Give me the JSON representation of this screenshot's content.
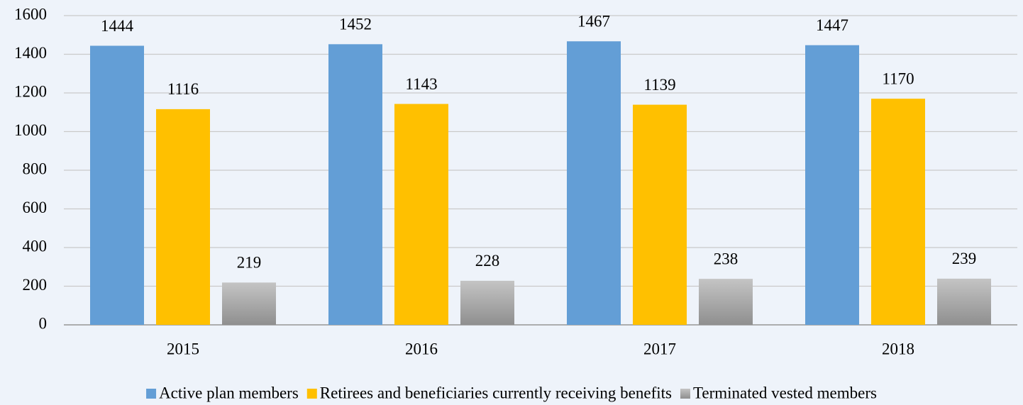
{
  "chart_data": {
    "type": "bar",
    "categories": [
      "2015",
      "2016",
      "2017",
      "2018"
    ],
    "series": [
      {
        "name": "Active plan members",
        "color": "#639ed6",
        "values": [
          1444,
          1452,
          1467,
          1447
        ]
      },
      {
        "name": "Retirees and beneficiaries currently receiving benefits",
        "color": "#ffc000",
        "values": [
          1116,
          1143,
          1139,
          1170
        ]
      },
      {
        "name": "Terminated vested members",
        "color": "#a5a5a5",
        "values": [
          219,
          228,
          238,
          239
        ]
      }
    ],
    "ylim": [
      0,
      1600
    ],
    "yticks": [
      0,
      200,
      400,
      600,
      800,
      1000,
      1200,
      1400,
      1600
    ],
    "grid": true,
    "legend": "bottom"
  }
}
